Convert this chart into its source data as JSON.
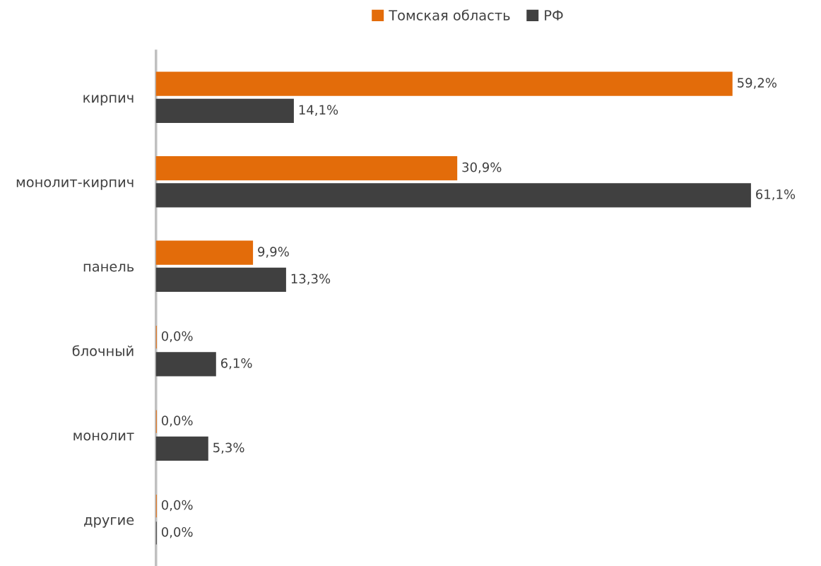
{
  "chart_data": {
    "type": "bar",
    "orientation": "horizontal",
    "legend": "top",
    "categories": [
      "кирпич",
      "монолит-кирпич",
      "панель",
      "блочный",
      "монолит",
      "другие"
    ],
    "series": [
      {
        "name": "Томская область",
        "color": "#e36c0a",
        "values": [
          59.2,
          30.9,
          9.9,
          0.0,
          0.0,
          0.0
        ],
        "value_labels": [
          "59,2%",
          "30,9%",
          "9,9%",
          "0,0%",
          "0,0%",
          "0,0%"
        ]
      },
      {
        "name": "РФ",
        "color": "#404040",
        "values": [
          14.1,
          61.1,
          13.3,
          6.1,
          5.3,
          0.0
        ],
        "value_labels": [
          "14,1%",
          "61,1%",
          "13,3%",
          "6,1%",
          "5,3%",
          "0,0%"
        ]
      }
    ]
  }
}
